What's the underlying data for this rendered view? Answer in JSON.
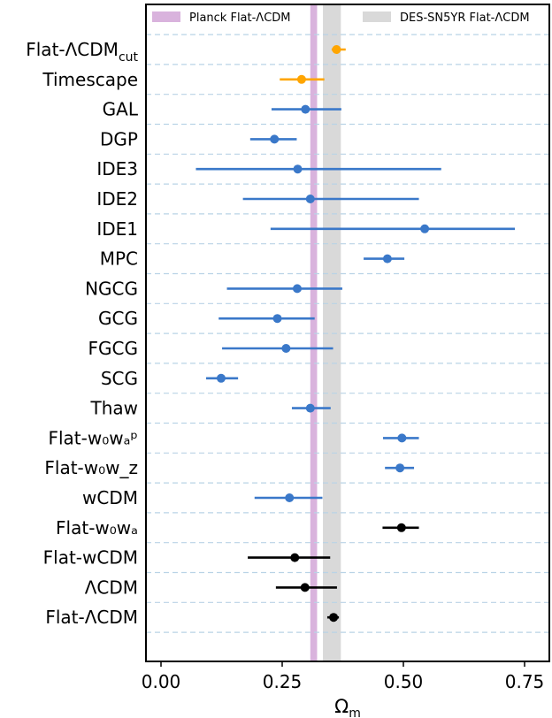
{
  "chart_data": {
    "type": "errorbar",
    "xlabel": "Ω",
    "xlabel_sub": "m",
    "xlim": [
      -0.03,
      0.81
    ],
    "xticks": [
      0.0,
      0.25,
      0.5,
      0.75
    ],
    "xtick_labels": [
      "0.00",
      "0.25",
      "0.50",
      "0.75"
    ],
    "grid": "horizontal dashed",
    "legend_placement": "top",
    "bands": [
      {
        "name": "Planck Flat-ΛCDM",
        "range": [
          0.308,
          0.322
        ],
        "color": "#d9b3dd"
      },
      {
        "name": "DES-SN5YR Flat-ΛCDM",
        "range": [
          0.334,
          0.371
        ],
        "color": "#d9d9d9"
      }
    ],
    "models": [
      {
        "label": "Flat-ΛCDM",
        "sub": "cut",
        "value": 0.362,
        "lo": 0.352,
        "hi": 0.381,
        "color": "#ffa500"
      },
      {
        "label": "Timescape",
        "value": 0.29,
        "lo": 0.245,
        "hi": 0.337,
        "color": "#ffa500"
      },
      {
        "label": "GAL",
        "value": 0.298,
        "lo": 0.228,
        "hi": 0.372,
        "color": "#3a78c9"
      },
      {
        "label": "DGP",
        "value": 0.234,
        "lo": 0.184,
        "hi": 0.28,
        "color": "#3a78c9"
      },
      {
        "label": "IDE3",
        "value": 0.282,
        "lo": 0.072,
        "hi": 0.578,
        "color": "#3a78c9"
      },
      {
        "label": "IDE2",
        "value": 0.308,
        "lo": 0.169,
        "hi": 0.532,
        "color": "#3a78c9"
      },
      {
        "label": "IDE1",
        "value": 0.544,
        "lo": 0.226,
        "hi": 0.73,
        "color": "#3a78c9"
      },
      {
        "label": "MPC",
        "value": 0.467,
        "lo": 0.418,
        "hi": 0.502,
        "color": "#3a78c9"
      },
      {
        "label": "NGCG",
        "value": 0.281,
        "lo": 0.136,
        "hi": 0.374,
        "color": "#3a78c9"
      },
      {
        "label": "GCG",
        "value": 0.24,
        "lo": 0.119,
        "hi": 0.317,
        "color": "#3a78c9"
      },
      {
        "label": "FGCG",
        "value": 0.258,
        "lo": 0.126,
        "hi": 0.355,
        "color": "#3a78c9"
      },
      {
        "label": "SCG",
        "value": 0.124,
        "lo": 0.093,
        "hi": 0.159,
        "color": "#3a78c9"
      },
      {
        "label": "Thaw",
        "value": 0.308,
        "lo": 0.27,
        "hi": 0.35,
        "color": "#3a78c9"
      },
      {
        "label": "Flat-w₀wₐᵖ",
        "value": 0.497,
        "lo": 0.458,
        "hi": 0.532,
        "color": "#3a78c9"
      },
      {
        "label": "Flat-w₀w_z",
        "value": 0.493,
        "lo": 0.462,
        "hi": 0.522,
        "color": "#3a78c9"
      },
      {
        "label": "wCDM",
        "value": 0.265,
        "lo": 0.193,
        "hi": 0.333,
        "color": "#3a78c9"
      },
      {
        "label": "Flat-w₀wₐ",
        "value": 0.496,
        "lo": 0.457,
        "hi": 0.532,
        "color": "#000000"
      },
      {
        "label": "Flat-wCDM",
        "value": 0.276,
        "lo": 0.179,
        "hi": 0.349,
        "color": "#000000"
      },
      {
        "label": "ΛCDM",
        "value": 0.297,
        "lo": 0.237,
        "hi": 0.363,
        "color": "#000000"
      },
      {
        "label": "Flat-ΛCDM",
        "value": 0.356,
        "lo": 0.343,
        "hi": 0.367,
        "color": "#000000"
      }
    ]
  }
}
